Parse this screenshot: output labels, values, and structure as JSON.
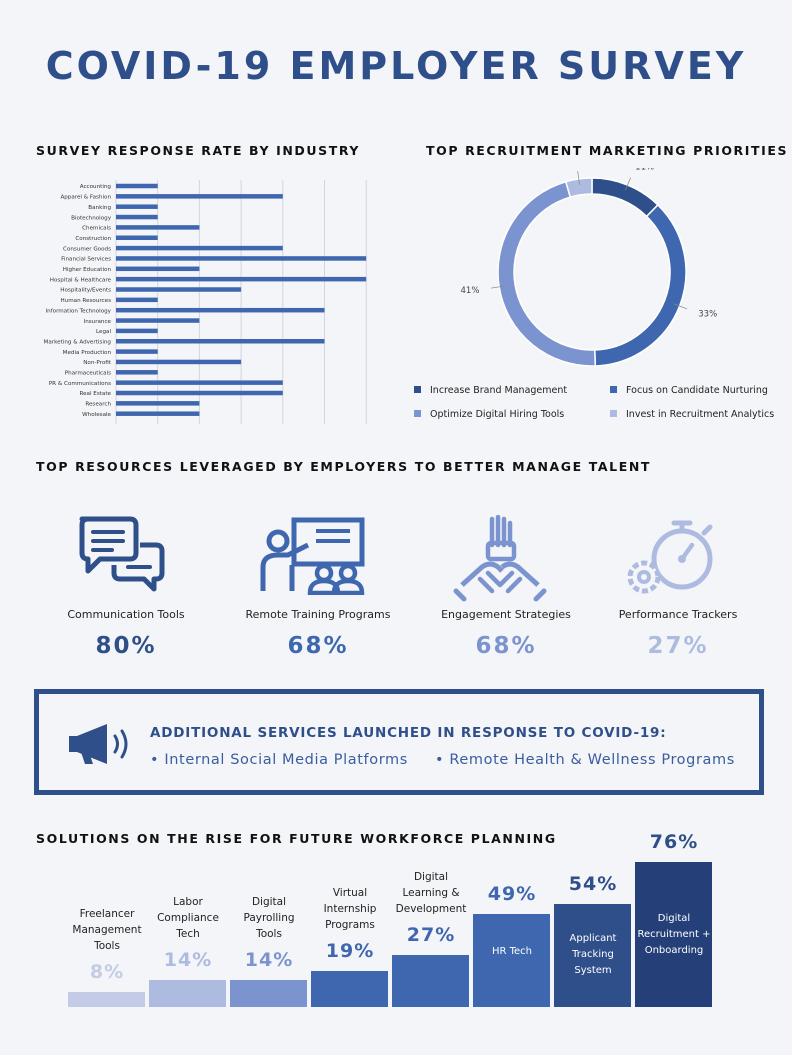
{
  "title": "COVID-19 EMPLOYER SURVEY",
  "colors": {
    "dark": "#2f4f8a",
    "navy": "#253f78",
    "mid": "#3f67b0",
    "light": "#7b93cf",
    "pale": "#aebbe0",
    "paler": "#c3cbe6"
  },
  "industry_chart": {
    "heading": "SURVEY RESPONSE RATE BY INDUSTRY",
    "chart_data": {
      "type": "bar",
      "orientation": "horizontal",
      "categories": [
        "Accounting",
        "Apparel & Fashion",
        "Banking",
        "Biotechnology",
        "Chemicals",
        "Construction",
        "Consumer Goods",
        "Financial Services",
        "Higher Education",
        "Hospital & Healthcare",
        "Hospitality/Events",
        "Human Resources",
        "Information Technology",
        "Insurance",
        "Legal",
        "Marketing & Advertising",
        "Media Production",
        "Non-Profit",
        "Pharmaceuticals",
        "PR & Communications",
        "Real Estate",
        "Research",
        "Wholesale"
      ],
      "values": [
        1,
        4,
        1,
        1,
        2,
        1,
        4,
        6,
        2,
        6,
        3,
        1,
        5,
        2,
        1,
        5,
        1,
        3,
        1,
        4,
        4,
        2,
        2
      ],
      "xlim": [
        0,
        6.4
      ],
      "grid": true,
      "color": "#3f67b0"
    }
  },
  "priorities_chart": {
    "heading": "TOP RECRUITMENT MARKETING PRIORITIES",
    "chart_data": {
      "type": "pie",
      "donut": true,
      "slices": [
        {
          "label": "Increase Brand Management",
          "value": 11,
          "display": "11%",
          "color": "#2f4f8a"
        },
        {
          "label": "Focus on Candidate Nurturing",
          "value": 33,
          "display": "33%",
          "color": "#3f67b0"
        },
        {
          "label": "Optimize Digital Hiring Tools",
          "value": 41,
          "display": "41%",
          "color": "#7b93cf"
        },
        {
          "label": "Invest in Recruitment Analytics",
          "value": 4,
          "display": "4%",
          "color": "#aebbe0"
        }
      ],
      "legend_placement": "bottom"
    }
  },
  "resources": {
    "heading": "TOP RESOURCES LEVERAGED BY EMPLOYERS TO BETTER MANAGE TALENT",
    "items": [
      {
        "label": "Communication Tools",
        "pct": "80%",
        "icon": "chat-bubbles-icon",
        "color": "#2f4f8a"
      },
      {
        "label": "Remote Training Programs",
        "pct": "68%",
        "icon": "presentation-training-icon",
        "color": "#3f67b0"
      },
      {
        "label": "Engagement Strategies",
        "pct": "68%",
        "icon": "team-hands-icon",
        "color": "#7b93cf"
      },
      {
        "label": "Performance Trackers",
        "pct": "27%",
        "icon": "stopwatch-gear-icon",
        "color": "#aebbe0"
      }
    ]
  },
  "services": {
    "heading": "ADDITIONAL SERVICES LAUNCHED IN RESPONSE TO COVID-19:",
    "icon": "megaphone-icon",
    "items": [
      "• Internal Social Media Platforms",
      "• Remote Health & Wellness Programs"
    ]
  },
  "solutions": {
    "heading": "SOLUTIONS ON THE RISE FOR FUTURE WORKFORCE PLANNING",
    "chart_data": {
      "type": "bar",
      "categories": [
        "Freelancer Management Tools",
        "Labor Compliance Tech",
        "Digital Payrolling Tools",
        "Virtual Internship Programs",
        "Digital Learning & Development",
        "HR Tech",
        "Applicant Tracking System",
        "Digital Recruitment + Onboarding"
      ],
      "values": [
        8,
        14,
        14,
        19,
        27,
        49,
        54,
        76
      ],
      "display": [
        "8%",
        "14%",
        "14%",
        "19%",
        "27%",
        "49%",
        "54%",
        "76%"
      ],
      "colors": [
        "#c3cbe6",
        "#aebbe0",
        "#7b93cf",
        "#3f67b0",
        "#3f67b0",
        "#3f67b0",
        "#2f4f8a",
        "#253f78"
      ],
      "label_lines": [
        [
          "Freelancer",
          "Management",
          "Tools"
        ],
        [
          "Labor",
          "Compliance",
          "Tech"
        ],
        [
          "Digital",
          "Payrolling",
          "Tools"
        ],
        [
          "Virtual",
          "Internship",
          "Programs"
        ],
        [
          "Digital",
          "Learning &",
          "Development"
        ],
        [
          "HR",
          "Tech"
        ],
        [
          "Applicant",
          "Tracking",
          "System"
        ],
        [
          "Digital",
          "Recruitment +",
          "Onboarding"
        ]
      ],
      "label_inside": [
        false,
        false,
        false,
        false,
        false,
        true,
        true,
        true
      ]
    }
  }
}
